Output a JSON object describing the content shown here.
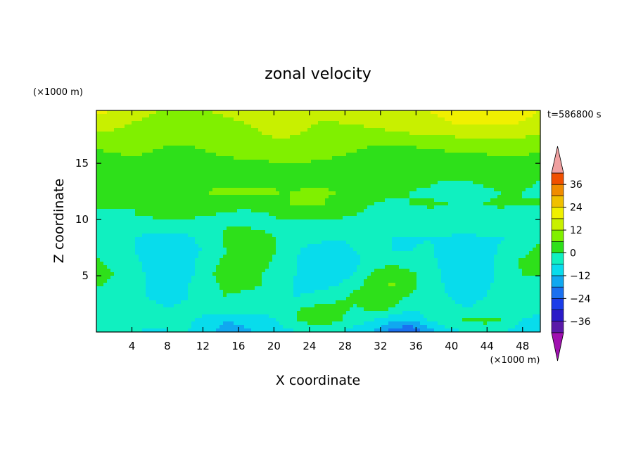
{
  "chart_data": {
    "type": "heatmap",
    "title": "zonal velocity",
    "xlabel": "X coordinate",
    "ylabel": "Z coordinate",
    "x_unit": "(×1000 m)",
    "y_unit": "(×1000 m)",
    "time_label": "t=586800 s",
    "xlim": [
      0,
      50
    ],
    "ylim": [
      0,
      19.7
    ],
    "x_ticks": [
      4,
      8,
      12,
      16,
      20,
      24,
      28,
      32,
      36,
      40,
      44,
      48
    ],
    "y_ticks": [
      5,
      10,
      15
    ],
    "colorbar": {
      "levels": [
        -42,
        -36,
        -30,
        -24,
        -18,
        -12,
        -6,
        0,
        6,
        12,
        18,
        24,
        30,
        36,
        42
      ],
      "tick_labels": [
        "36",
        "24",
        "12",
        "0",
        "−12",
        "−24",
        "−36"
      ],
      "tick_values": [
        36,
        24,
        12,
        0,
        -12,
        -24,
        -36
      ],
      "colors": [
        "#5a1aa8",
        "#2a1ac8",
        "#1a3ce8",
        "#1a70f0",
        "#10a8f0",
        "#08dcec",
        "#10f0c0",
        "#2ee01a",
        "#80f000",
        "#c8f000",
        "#f0f000",
        "#f0c000",
        "#f08c00",
        "#f05000",
        "#e81818"
      ],
      "over_color": "#f0a0a0",
      "under_color": "#a010b0",
      "extend": "both"
    },
    "field": {
      "nx": 25,
      "nz": 20,
      "x_range": [
        0,
        50
      ],
      "z_range": [
        0,
        19.7
      ],
      "values": [
        [
          -4,
          -4,
          -5,
          -8,
          -6,
          -6,
          -10,
          -15,
          -14,
          -10,
          -8,
          -6,
          -6,
          -6,
          -8,
          -12,
          -22,
          -24,
          -16,
          -8,
          -6,
          -6,
          -5,
          -10,
          -8
        ],
        [
          -5,
          -3,
          -1,
          -3,
          -4,
          -5,
          -9,
          -12,
          -10,
          -8,
          -5,
          1,
          4,
          1,
          -4,
          -6,
          -11,
          -12,
          -6,
          -2,
          1,
          2,
          0,
          -6,
          -8
        ],
        [
          -2,
          -4,
          -3,
          -4,
          -6,
          -4,
          -2,
          -1,
          -2,
          -4,
          -3,
          0,
          2,
          3,
          -1,
          2,
          0,
          -5,
          -3,
          -4,
          -6,
          -4,
          -2,
          -4,
          -4
        ],
        [
          -3,
          -5,
          -4,
          -7,
          -8,
          -6,
          -2,
          0,
          -2,
          -4,
          -6,
          -6,
          -4,
          -2,
          2,
          4,
          2,
          -1,
          -3,
          -6,
          -8,
          -6,
          -4,
          -3,
          -3
        ],
        [
          1,
          -2,
          -4,
          -7,
          -10,
          -6,
          -2,
          1,
          2,
          0,
          -4,
          -7,
          -8,
          -6,
          -2,
          4,
          7,
          2,
          -3,
          -7,
          -9,
          -7,
          -4,
          -2,
          -4
        ],
        [
          2,
          0,
          -3,
          -8,
          -12,
          -8,
          -1,
          2,
          3,
          0,
          -3,
          -7,
          -9,
          -9,
          -6,
          2,
          5,
          1,
          -2,
          -8,
          -12,
          -8,
          -4,
          0,
          1
        ],
        [
          1,
          -2,
          -4,
          -9,
          -11,
          -8,
          -2,
          1,
          4,
          2,
          -3,
          -7,
          -9,
          -8,
          -7,
          -4,
          -2,
          -4,
          -4,
          -9,
          -11,
          -8,
          -4,
          1,
          3
        ],
        [
          -2,
          -4,
          -6,
          -10,
          -12,
          -10,
          -4,
          0,
          4,
          3,
          -1,
          -6,
          -8,
          -8,
          -6,
          -5,
          -6,
          -6,
          -5,
          -9,
          -10,
          -8,
          -5,
          -2,
          2
        ],
        [
          -3,
          -4,
          -6,
          -8,
          -9,
          -7,
          -3,
          1,
          4,
          2,
          -1,
          -4,
          -5,
          -6,
          -5,
          -4,
          -6,
          -7,
          -6,
          -7,
          -8,
          -7,
          -6,
          -3,
          -2
        ],
        [
          -1,
          -2,
          -3,
          -4,
          -4,
          -3,
          -2,
          0,
          0,
          -1,
          -2,
          -3,
          -3,
          -3,
          -2,
          -2,
          -3,
          -3,
          -3,
          -3,
          -3,
          -2,
          -2,
          -2,
          -2
        ],
        [
          -2,
          -1,
          0,
          1,
          2,
          1,
          0,
          -1,
          -2,
          -1,
          1,
          2,
          2,
          1,
          0,
          -1,
          -2,
          -3,
          -2,
          -2,
          -2,
          -1,
          -2,
          -3,
          -2
        ],
        [
          2,
          1,
          0,
          1,
          3,
          4,
          5,
          3,
          2,
          3,
          5,
          7,
          7,
          4,
          1,
          0,
          -1,
          0,
          1,
          0,
          -1,
          0,
          1,
          0,
          1
        ],
        [
          0,
          1,
          2,
          3,
          4,
          5,
          6,
          7,
          8,
          7,
          6,
          6,
          7,
          6,
          4,
          2,
          1,
          0,
          -1,
          -3,
          -2,
          -1,
          0,
          0,
          -1
        ],
        [
          0,
          1,
          2,
          3,
          3,
          4,
          5,
          5,
          4,
          4,
          5,
          6,
          5,
          4,
          2,
          1,
          0,
          1,
          1,
          0,
          0,
          1,
          2,
          1,
          0
        ],
        [
          2,
          2,
          3,
          2,
          1,
          2,
          3,
          2,
          1,
          2,
          3,
          4,
          3,
          2,
          1,
          2,
          3,
          3,
          2,
          1,
          1,
          2,
          3,
          3,
          2
        ],
        [
          4,
          5,
          6,
          5,
          4,
          4,
          5,
          6,
          7,
          8,
          9,
          8,
          7,
          6,
          5,
          4,
          4,
          4,
          4,
          4,
          4,
          5,
          6,
          6,
          5
        ],
        [
          7,
          8,
          8,
          7,
          6,
          6,
          7,
          8,
          9,
          10,
          11,
          10,
          9,
          8,
          7,
          6,
          6,
          6,
          7,
          8,
          8,
          9,
          9,
          8,
          7
        ],
        [
          11,
          11,
          10,
          9,
          8,
          8,
          9,
          10,
          11,
          12,
          13,
          12,
          11,
          10,
          9,
          10,
          11,
          12,
          12,
          13,
          14,
          15,
          15,
          14,
          12
        ],
        [
          16,
          14,
          12,
          10,
          9,
          9,
          10,
          11,
          12,
          13,
          14,
          13,
          12,
          12,
          13,
          14,
          15,
          16,
          17,
          18,
          19,
          19,
          19,
          18,
          16
        ],
        [
          19,
          18,
          16,
          13,
          11,
          11,
          12,
          13,
          14,
          15,
          15,
          14,
          13,
          13,
          14,
          15,
          16,
          17,
          18,
          19,
          20,
          21,
          21,
          20,
          18
        ]
      ]
    }
  }
}
